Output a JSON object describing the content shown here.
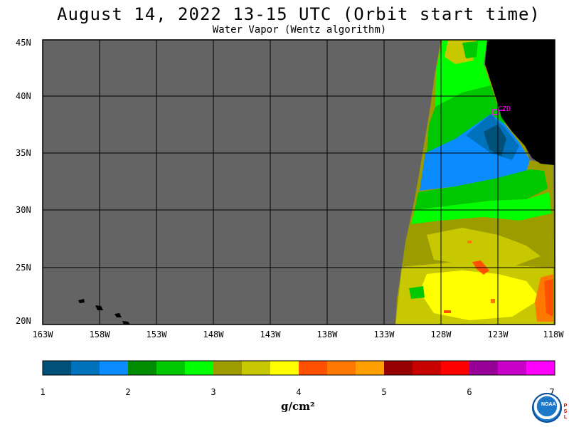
{
  "title": "August 14, 2022  13-15 UTC  (Orbit start time)",
  "subtitle": "Water Vapor (Wentz algorithm)",
  "map": {
    "lat_labels": [
      "45N",
      "40N",
      "35N",
      "30N",
      "25N",
      "20N"
    ],
    "lon_labels": [
      "163W",
      "158W",
      "153W",
      "148W",
      "143W",
      "138W",
      "133W",
      "128W",
      "123W",
      "118W"
    ],
    "station_label": "CZD",
    "no_data_color": "#646464",
    "land_color": "#000000",
    "station_color": "#ff00ff"
  },
  "colorbar": {
    "ticks": [
      "1",
      "2",
      "3",
      "4",
      "5",
      "6",
      "7"
    ],
    "unit": "g/cm²",
    "colors": [
      "#00507a",
      "#0072bb",
      "#0a8cff",
      "#008c00",
      "#00c800",
      "#00ff00",
      "#9c9c00",
      "#c8c800",
      "#ffff00",
      "#ff5000",
      "#ff7800",
      "#ffa000",
      "#960000",
      "#c80000",
      "#ff0000",
      "#960096",
      "#c800c8",
      "#ff00ff"
    ]
  },
  "logo": {
    "name": "NOAA",
    "side_text": [
      "P",
      "S",
      "L"
    ]
  }
}
